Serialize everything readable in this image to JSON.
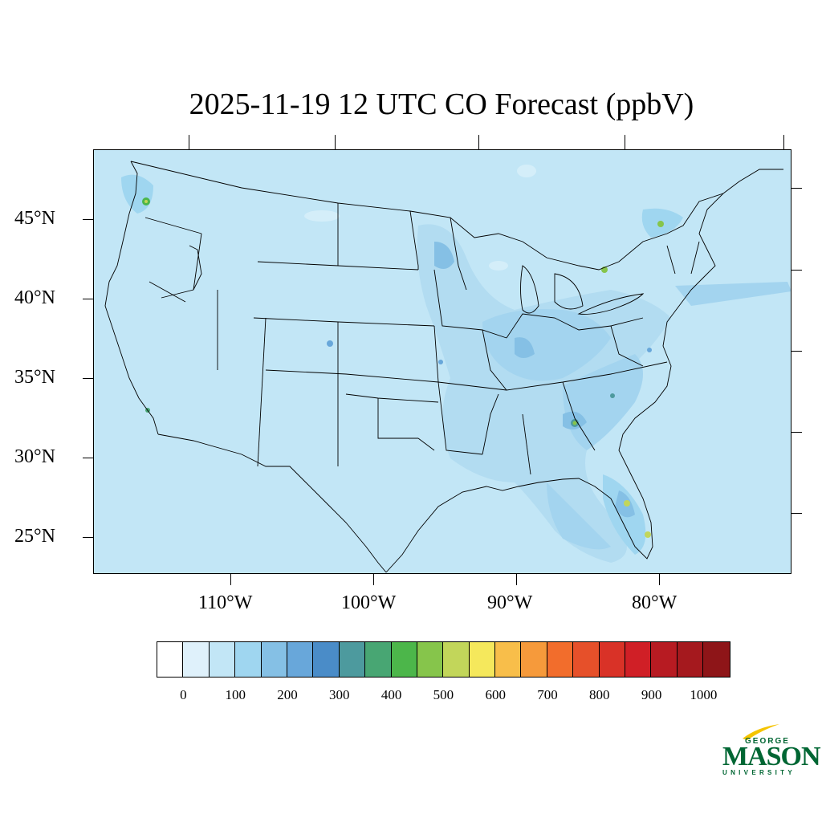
{
  "title": "2025-11-19 12 UTC CO Forecast (ppbV)",
  "map": {
    "background_color": "#c2e6f6",
    "lat_labels": [
      "45°N",
      "40°N",
      "35°N",
      "30°N",
      "25°N"
    ],
    "lon_labels": [
      "110°W",
      "100°W",
      "90°W",
      "80°W"
    ]
  },
  "colorbar": {
    "colors": [
      "#ffffff",
      "#dff1fb",
      "#c2e6f6",
      "#9fd6f0",
      "#85c0e5",
      "#68a7da",
      "#4a8cc8",
      "#4d9a9e",
      "#48a673",
      "#4cb64a",
      "#86c54b",
      "#c2d65a",
      "#f5e85c",
      "#f8be4a",
      "#f69a3b",
      "#f26d2c",
      "#e6502a",
      "#d93227",
      "#d01f26",
      "#b71b22",
      "#a5191e",
      "#8e1518"
    ],
    "labels": [
      "0",
      "100",
      "200",
      "300",
      "400",
      "500",
      "600",
      "700",
      "800",
      "900",
      "1000"
    ]
  },
  "logo": {
    "top": "GEORGE",
    "main": "MASON",
    "bottom": "UNIVERSITY",
    "color": "#006633",
    "accent_color": "#f5c400"
  }
}
